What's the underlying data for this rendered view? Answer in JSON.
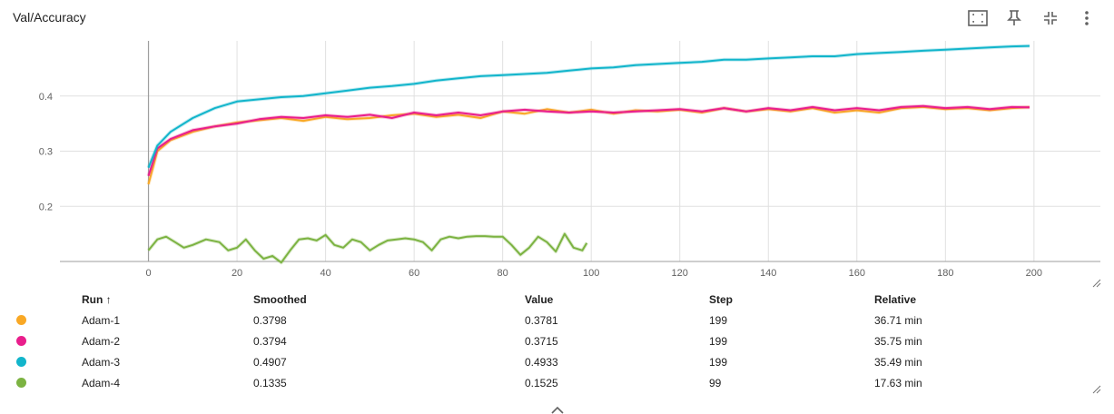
{
  "card": {
    "title": "Val/Accuracy"
  },
  "toolbar": [
    {
      "name": "fit-domain-icon"
    },
    {
      "name": "pin-icon"
    },
    {
      "name": "collapse-icon"
    },
    {
      "name": "more-vert-icon"
    }
  ],
  "chart_data": {
    "type": "line",
    "xlim": [
      -20,
      215
    ],
    "ylim": [
      0.1,
      0.5
    ],
    "x_ticks": [
      0,
      20,
      40,
      60,
      80,
      100,
      120,
      140,
      160,
      180,
      200
    ],
    "y_ticks": [
      0.2,
      0.3,
      0.4
    ],
    "grid": true,
    "legend": "table-below",
    "series": [
      {
        "name": "Adam-1",
        "color": "#f9a825",
        "x": [
          0,
          2,
          5,
          10,
          15,
          20,
          25,
          30,
          35,
          40,
          45,
          50,
          55,
          60,
          65,
          70,
          75,
          80,
          85,
          90,
          95,
          100,
          105,
          110,
          115,
          120,
          125,
          130,
          135,
          140,
          145,
          150,
          155,
          160,
          165,
          170,
          175,
          180,
          185,
          190,
          195,
          199
        ],
        "y": [
          0.24,
          0.3,
          0.32,
          0.335,
          0.345,
          0.352,
          0.356,
          0.36,
          0.355,
          0.362,
          0.358,
          0.36,
          0.365,
          0.368,
          0.362,
          0.366,
          0.36,
          0.372,
          0.368,
          0.376,
          0.37,
          0.375,
          0.368,
          0.374,
          0.372,
          0.375,
          0.37,
          0.378,
          0.372,
          0.376,
          0.372,
          0.378,
          0.37,
          0.374,
          0.37,
          0.378,
          0.38,
          0.376,
          0.378,
          0.374,
          0.378,
          0.3798
        ]
      },
      {
        "name": "Adam-2",
        "color": "#e91e8c",
        "x": [
          0,
          2,
          5,
          10,
          15,
          20,
          25,
          30,
          35,
          40,
          45,
          50,
          55,
          60,
          65,
          70,
          75,
          80,
          85,
          90,
          95,
          100,
          105,
          110,
          115,
          120,
          125,
          130,
          135,
          140,
          145,
          150,
          155,
          160,
          165,
          170,
          175,
          180,
          185,
          190,
          195,
          199
        ],
        "y": [
          0.255,
          0.305,
          0.322,
          0.338,
          0.345,
          0.35,
          0.358,
          0.362,
          0.36,
          0.365,
          0.362,
          0.366,
          0.36,
          0.37,
          0.365,
          0.37,
          0.365,
          0.372,
          0.375,
          0.372,
          0.37,
          0.372,
          0.37,
          0.372,
          0.374,
          0.376,
          0.372,
          0.378,
          0.372,
          0.378,
          0.374,
          0.38,
          0.374,
          0.378,
          0.374,
          0.38,
          0.382,
          0.378,
          0.38,
          0.376,
          0.38,
          0.3794
        ]
      },
      {
        "name": "Adam-3",
        "color": "#12b5cb",
        "x": [
          0,
          2,
          5,
          10,
          15,
          20,
          25,
          30,
          35,
          40,
          45,
          50,
          55,
          60,
          65,
          70,
          75,
          80,
          85,
          90,
          95,
          100,
          105,
          110,
          115,
          120,
          125,
          130,
          135,
          140,
          145,
          150,
          155,
          160,
          165,
          170,
          175,
          180,
          185,
          190,
          195,
          199
        ],
        "y": [
          0.27,
          0.31,
          0.335,
          0.36,
          0.378,
          0.39,
          0.394,
          0.398,
          0.4,
          0.405,
          0.41,
          0.415,
          0.418,
          0.422,
          0.428,
          0.432,
          0.436,
          0.438,
          0.44,
          0.442,
          0.446,
          0.45,
          0.452,
          0.456,
          0.458,
          0.46,
          0.462,
          0.466,
          0.466,
          0.468,
          0.47,
          0.472,
          0.472,
          0.476,
          0.478,
          0.48,
          0.482,
          0.484,
          0.486,
          0.488,
          0.49,
          0.4907
        ]
      },
      {
        "name": "Adam-4",
        "color": "#7cb342",
        "x": [
          0,
          2,
          4,
          6,
          8,
          10,
          13,
          16,
          18,
          20,
          22,
          24,
          26,
          28,
          30,
          32,
          34,
          36,
          38,
          40,
          42,
          44,
          46,
          48,
          50,
          52,
          54,
          56,
          58,
          60,
          62,
          64,
          66,
          68,
          70,
          72,
          74,
          76,
          78,
          80,
          82,
          84,
          86,
          88,
          90,
          92,
          94,
          96,
          98,
          99
        ],
        "y": [
          0.12,
          0.14,
          0.145,
          0.135,
          0.125,
          0.13,
          0.14,
          0.135,
          0.12,
          0.125,
          0.14,
          0.12,
          0.105,
          0.11,
          0.098,
          0.12,
          0.14,
          0.142,
          0.138,
          0.148,
          0.13,
          0.125,
          0.14,
          0.135,
          0.12,
          0.13,
          0.138,
          0.14,
          0.142,
          0.14,
          0.135,
          0.12,
          0.14,
          0.145,
          0.142,
          0.145,
          0.146,
          0.146,
          0.145,
          0.145,
          0.13,
          0.112,
          0.125,
          0.145,
          0.135,
          0.118,
          0.15,
          0.125,
          0.12,
          0.1335
        ]
      }
    ]
  },
  "table": {
    "headers": {
      "run": "Run ↑",
      "smoothed": "Smoothed",
      "value": "Value",
      "step": "Step",
      "relative": "Relative"
    },
    "rows": [
      {
        "color": "#f9a825",
        "run": "Adam-1",
        "smoothed": "0.3798",
        "value": "0.3781",
        "step": "199",
        "relative": "36.71 min"
      },
      {
        "color": "#e91e8c",
        "run": "Adam-2",
        "smoothed": "0.3794",
        "value": "0.3715",
        "step": "199",
        "relative": "35.75 min"
      },
      {
        "color": "#12b5cb",
        "run": "Adam-3",
        "smoothed": "0.4907",
        "value": "0.4933",
        "step": "199",
        "relative": "35.49 min"
      },
      {
        "color": "#7cb342",
        "run": "Adam-4",
        "smoothed": "0.1335",
        "value": "0.1525",
        "step": "99",
        "relative": "17.63 min"
      }
    ]
  }
}
